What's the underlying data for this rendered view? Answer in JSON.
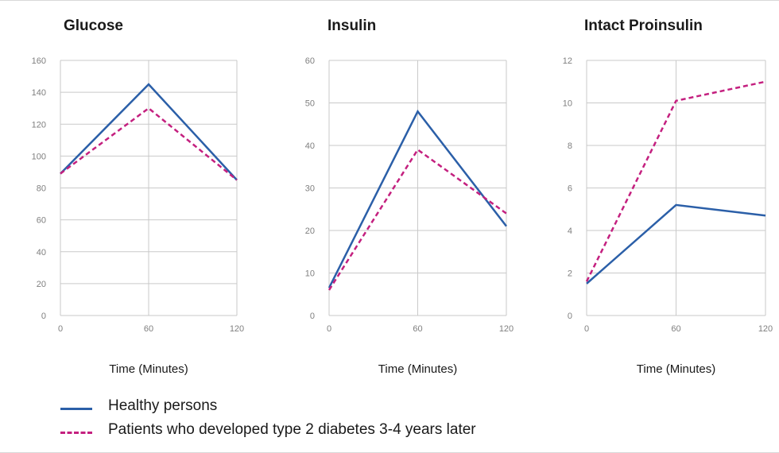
{
  "chart_data": [
    {
      "type": "line",
      "title": "Glucose",
      "xlabel": "Time (Minutes)",
      "x": [
        0,
        60,
        120
      ],
      "x_ticks": [
        "0",
        "60",
        "120"
      ],
      "y_ticks": [
        "0",
        "20",
        "40",
        "60",
        "80",
        "100",
        "120",
        "140",
        "160"
      ],
      "ylim": [
        0,
        160
      ],
      "grid": true,
      "series": [
        {
          "name": "Healthy persons",
          "values": [
            89,
            145,
            85
          ],
          "color": "#2b5fa8",
          "dash": false
        },
        {
          "name": "Patients who developed type 2 diabetes 3-4 years later",
          "values": [
            89,
            130,
            85
          ],
          "color": "#c4207f",
          "dash": true
        }
      ]
    },
    {
      "type": "line",
      "title": "Insulin",
      "xlabel": "Time (Minutes)",
      "x": [
        0,
        60,
        120
      ],
      "x_ticks": [
        "0",
        "60",
        "120"
      ],
      "y_ticks": [
        "0",
        "10",
        "20",
        "30",
        "40",
        "50",
        "60"
      ],
      "ylim": [
        0,
        60
      ],
      "grid": true,
      "series": [
        {
          "name": "Healthy persons",
          "values": [
            6.5,
            48,
            21
          ],
          "color": "#2b5fa8",
          "dash": false
        },
        {
          "name": "Patients who developed type 2 diabetes 3-4 years later",
          "values": [
            6,
            39,
            24
          ],
          "color": "#c4207f",
          "dash": true
        }
      ]
    },
    {
      "type": "line",
      "title": "Intact Proinsulin",
      "xlabel": "Time (Minutes)",
      "x": [
        0,
        60,
        120
      ],
      "x_ticks": [
        "0",
        "60",
        "120"
      ],
      "y_ticks": [
        "0",
        "2",
        "4",
        "6",
        "8",
        "10",
        "12"
      ],
      "ylim": [
        0,
        12
      ],
      "grid": true,
      "series": [
        {
          "name": "Healthy persons",
          "values": [
            1.5,
            5.2,
            4.7
          ],
          "color": "#2b5fa8",
          "dash": false
        },
        {
          "name": "Patients who developed type 2 diabetes 3-4 years later",
          "values": [
            1.6,
            10.1,
            11
          ],
          "color": "#c4207f",
          "dash": true
        }
      ]
    }
  ],
  "legend": {
    "placement": "bottom-left",
    "items": [
      {
        "label": "Healthy persons",
        "color": "#2b5fa8",
        "dash": false
      },
      {
        "label": "Patients who developed type 2 diabetes 3-4 years later",
        "color": "#c4207f",
        "dash": true
      }
    ]
  }
}
